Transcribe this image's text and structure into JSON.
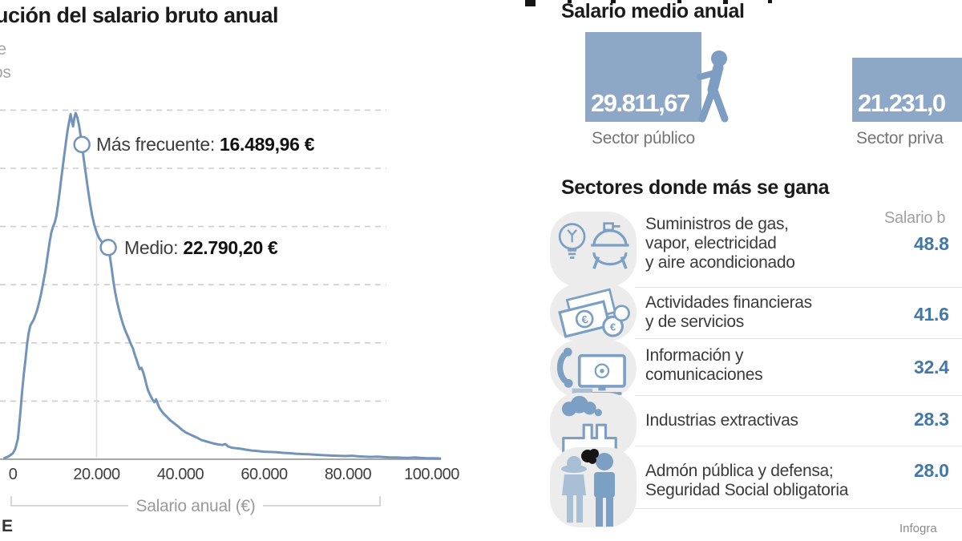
{
  "colors": {
    "line_blue": "#7293ba",
    "box_blue": "#8da7c6",
    "icon_blue": "#7ca0c4",
    "icon_blue_light": "#a9bfd6",
    "value_blue": "#4377a8",
    "grid": "#cdcdcd",
    "axis": "#a8a8a8",
    "separator": "#e3e3e3",
    "blob_bg": "#ececec",
    "marker_black": "#151515"
  },
  "left_chart": {
    "title_fragment": "ución del salario bruto anual",
    "subtitle_fragment_1": "le",
    "subtitle_fragment_2": "os",
    "mode_label": "Más frecuente: ",
    "mode_value": "16.489,96 €",
    "mean_label": "Medio: ",
    "mean_value": "22.790,20 €",
    "x_axis_label": "Salario anual (€)",
    "source_fragment": "E"
  },
  "chart_data": {
    "type": "line",
    "title_visible_fragment": "ución del salario bruto anual",
    "xlabel": "Salario anual (€)",
    "x_tick_labels": [
      "0",
      "20.000",
      "40.000",
      "60.000",
      "80.000",
      "100.000"
    ],
    "x_tick_values": [
      0,
      20000,
      40000,
      60000,
      80000,
      100000
    ],
    "xlim": [
      0,
      102000
    ],
    "y_axis_note": "y-axis tick labels are cropped out of the image; curve heights given in relative grid units (dashed gridlines at 1..6)",
    "gridlines_y_units": [
      1,
      2,
      3,
      4,
      5,
      6
    ],
    "grid": "dashed-horizontal",
    "marked_points": [
      {
        "label": "Más frecuente",
        "x_eur": 16489.96,
        "y_units": 5.41
      },
      {
        "label": "Medio",
        "x_eur": 22790.2,
        "y_units": 3.64
      }
    ],
    "series": [
      {
        "name": "Distribución del salario bruto anual",
        "points_keur_units": [
          [
            -2,
            0.02
          ],
          [
            -1,
            0.05
          ],
          [
            0,
            0.1
          ],
          [
            0.6,
            0.18
          ],
          [
            1.2,
            0.35
          ],
          [
            1.8,
            0.8
          ],
          [
            2.2,
            1.15
          ],
          [
            2.6,
            1.45
          ],
          [
            3,
            1.7
          ],
          [
            3.4,
            1.98
          ],
          [
            3.8,
            2.18
          ],
          [
            4.2,
            2.3
          ],
          [
            4.6,
            2.35
          ],
          [
            5,
            2.4
          ],
          [
            5.4,
            2.48
          ],
          [
            5.8,
            2.56
          ],
          [
            6.3,
            2.7
          ],
          [
            6.8,
            2.86
          ],
          [
            7.3,
            3.05
          ],
          [
            7.8,
            3.25
          ],
          [
            8.3,
            3.5
          ],
          [
            8.8,
            3.74
          ],
          [
            9.2,
            3.9
          ],
          [
            9.6,
            4.0
          ],
          [
            10,
            4.07
          ],
          [
            10.4,
            4.18
          ],
          [
            10.8,
            4.38
          ],
          [
            11.2,
            4.6
          ],
          [
            11.7,
            4.9
          ],
          [
            12.2,
            5.18
          ],
          [
            12.7,
            5.46
          ],
          [
            13.1,
            5.66
          ],
          [
            13.5,
            5.82
          ],
          [
            13.8,
            5.93
          ],
          [
            14.1,
            5.8
          ],
          [
            14.4,
            5.72
          ],
          [
            14.7,
            5.87
          ],
          [
            15,
            5.95
          ],
          [
            15.4,
            5.87
          ],
          [
            15.8,
            5.74
          ],
          [
            16.1,
            5.6
          ],
          [
            16.49,
            5.41
          ],
          [
            16.9,
            5.18
          ],
          [
            17.4,
            4.92
          ],
          [
            17.9,
            4.66
          ],
          [
            18.4,
            4.42
          ],
          [
            18.9,
            4.2
          ],
          [
            19.4,
            4.04
          ],
          [
            20,
            3.9
          ],
          [
            20.6,
            3.8
          ],
          [
            21.2,
            3.74
          ],
          [
            22,
            3.69
          ],
          [
            22.79,
            3.64
          ],
          [
            23.2,
            3.48
          ],
          [
            23.6,
            3.28
          ],
          [
            24,
            3.06
          ],
          [
            24.4,
            2.88
          ],
          [
            24.9,
            2.7
          ],
          [
            25.4,
            2.55
          ],
          [
            25.9,
            2.42
          ],
          [
            26.4,
            2.3
          ],
          [
            26.9,
            2.2
          ],
          [
            27.4,
            2.12
          ],
          [
            27.9,
            2.03
          ],
          [
            28.3,
            1.96
          ],
          [
            28.7,
            1.9
          ],
          [
            29.1,
            1.8
          ],
          [
            29.5,
            1.72
          ],
          [
            29.9,
            1.63
          ],
          [
            30.3,
            1.55
          ],
          [
            30.7,
            1.57
          ],
          [
            31.1,
            1.5
          ],
          [
            31.5,
            1.4
          ],
          [
            31.9,
            1.28
          ],
          [
            32.3,
            1.18
          ],
          [
            32.8,
            1.1
          ],
          [
            33.3,
            1.03
          ],
          [
            33.8,
            0.98
          ],
          [
            34.2,
            1.03
          ],
          [
            34.6,
            0.95
          ],
          [
            35,
            0.88
          ],
          [
            35.6,
            0.82
          ],
          [
            36.2,
            0.77
          ],
          [
            36.9,
            0.72
          ],
          [
            37.6,
            0.67
          ],
          [
            38.3,
            0.63
          ],
          [
            39,
            0.59
          ],
          [
            39.7,
            0.55
          ],
          [
            40.5,
            0.5
          ],
          [
            41.3,
            0.46
          ],
          [
            42.2,
            0.43
          ],
          [
            43.1,
            0.4
          ],
          [
            44,
            0.37
          ],
          [
            45,
            0.33
          ],
          [
            46,
            0.31
          ],
          [
            47,
            0.29
          ],
          [
            48,
            0.27
          ],
          [
            49,
            0.255
          ],
          [
            50,
            0.245
          ],
          [
            50.7,
            0.26
          ],
          [
            51.4,
            0.22
          ],
          [
            52.2,
            0.2
          ],
          [
            53.2,
            0.19
          ],
          [
            54.4,
            0.18
          ],
          [
            55.6,
            0.165
          ],
          [
            57,
            0.15
          ],
          [
            58.5,
            0.14
          ],
          [
            60,
            0.13
          ],
          [
            61.5,
            0.125
          ],
          [
            63,
            0.12
          ],
          [
            64.5,
            0.11
          ],
          [
            66,
            0.105
          ],
          [
            67.5,
            0.095
          ],
          [
            69,
            0.09
          ],
          [
            70.5,
            0.085
          ],
          [
            72,
            0.08
          ],
          [
            73.5,
            0.072
          ],
          [
            75,
            0.068
          ],
          [
            76.5,
            0.062
          ],
          [
            78,
            0.058
          ],
          [
            79.5,
            0.055
          ],
          [
            81,
            0.06
          ],
          [
            82.5,
            0.05
          ],
          [
            84,
            0.045
          ],
          [
            85.5,
            0.04
          ],
          [
            87,
            0.045
          ],
          [
            88.5,
            0.038
          ],
          [
            90,
            0.032
          ],
          [
            91.5,
            0.03
          ],
          [
            93,
            0.026
          ],
          [
            94.5,
            0.024
          ],
          [
            96,
            0.03
          ],
          [
            97.5,
            0.022
          ],
          [
            99,
            0.018
          ],
          [
            100.5,
            0.016
          ],
          [
            102,
            0.014
          ]
        ]
      }
    ]
  },
  "right_panel": {
    "avg_salary": {
      "title": "Salario medio anual",
      "items": [
        {
          "value": "29.811,67",
          "label": "Sector público"
        },
        {
          "value": "21.231,0",
          "label": "Sector priva"
        }
      ]
    },
    "top_sectors": {
      "title": "Sectores donde más se gana",
      "column_header_fragment": "Salario b",
      "rows": [
        {
          "icon": "energy-icon",
          "label_lines": [
            "Suministros de gas,",
            "vapor, electricidad",
            "y aire acondicionado"
          ],
          "value_fragment": "48.8"
        },
        {
          "icon": "money-icon",
          "label_lines": [
            "Actividades financieras",
            "y de servicios"
          ],
          "value_fragment": "41.6"
        },
        {
          "icon": "communications-icon",
          "label_lines": [
            "Información y",
            "comunicaciones"
          ],
          "value_fragment": "32.4"
        },
        {
          "icon": "factory-icon",
          "label_lines": [
            "Industrias extractivas"
          ],
          "value_fragment": "28.3"
        },
        {
          "icon": "people-icon",
          "label_lines": [
            "Admón pública y defensa;",
            "Seguridad Social obligatoria"
          ],
          "value_fragment": "28.0"
        }
      ]
    },
    "credit_fragment": "Infogra"
  }
}
